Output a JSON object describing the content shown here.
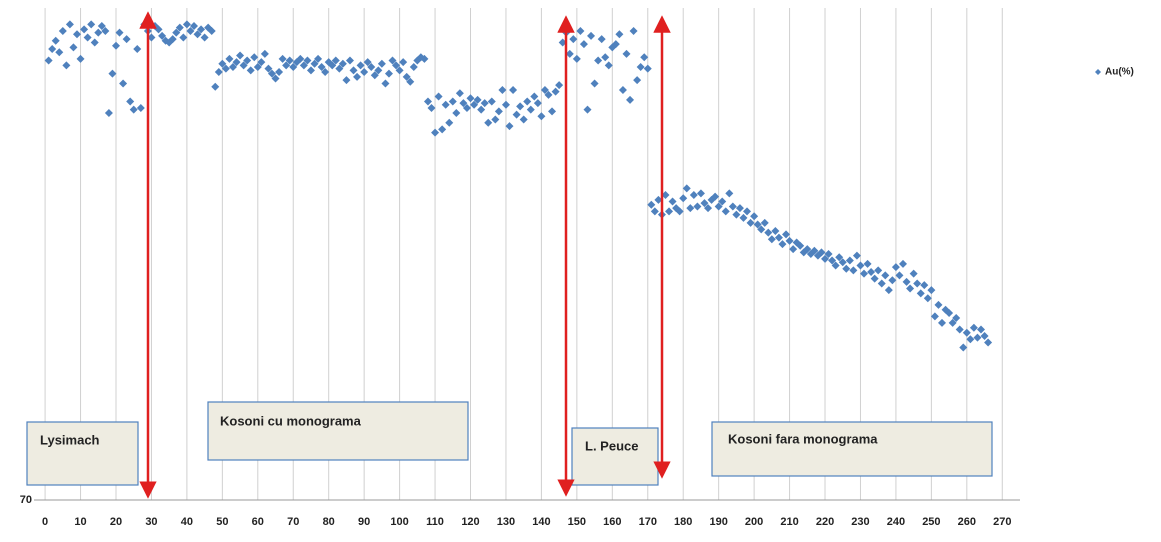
{
  "chart_data": {
    "type": "scatter",
    "xlim": [
      -2,
      275
    ],
    "xticks": [
      0,
      10,
      20,
      30,
      40,
      50,
      60,
      70,
      80,
      90,
      100,
      110,
      120,
      130,
      140,
      150,
      160,
      170,
      180,
      190,
      200,
      210,
      220,
      230,
      240,
      250,
      260,
      270
    ],
    "ylim": [
      70,
      100
    ],
    "yticks": [
      70
    ],
    "grid": true,
    "legend": "right",
    "annotations": [
      "Lysimach",
      "Kosoni  cu monograma",
      "L. Peuce",
      "Kosoni fara monograma"
    ],
    "series": [
      {
        "name": "Au(%)",
        "color": "#4f81bd",
        "x": [
          1,
          2,
          3,
          4,
          5,
          6,
          7,
          8,
          9,
          10,
          11,
          12,
          13,
          14,
          15,
          16,
          17,
          18,
          19,
          20,
          21,
          22,
          23,
          24,
          25,
          26,
          27,
          28,
          29,
          30,
          31,
          32,
          33,
          34,
          35,
          36,
          37,
          38,
          39,
          40,
          41,
          42,
          43,
          44,
          45,
          46,
          47,
          48,
          49,
          50,
          51,
          52,
          53,
          54,
          55,
          56,
          57,
          58,
          59,
          60,
          61,
          62,
          63,
          64,
          65,
          66,
          67,
          68,
          69,
          70,
          71,
          72,
          73,
          74,
          75,
          76,
          77,
          78,
          79,
          80,
          81,
          82,
          83,
          84,
          85,
          86,
          87,
          88,
          89,
          90,
          91,
          92,
          93,
          94,
          95,
          96,
          97,
          98,
          99,
          100,
          101,
          102,
          103,
          104,
          105,
          106,
          107,
          108,
          109,
          110,
          111,
          112,
          113,
          114,
          115,
          116,
          117,
          118,
          119,
          120,
          121,
          122,
          123,
          124,
          125,
          126,
          127,
          128,
          129,
          130,
          131,
          132,
          133,
          134,
          135,
          136,
          137,
          138,
          139,
          140,
          141,
          142,
          143,
          144,
          145,
          146,
          147,
          148,
          149,
          150,
          151,
          152,
          153,
          154,
          155,
          156,
          157,
          158,
          159,
          160,
          161,
          162,
          163,
          164,
          165,
          166,
          167,
          168,
          169,
          170,
          171,
          172,
          173,
          174,
          175,
          176,
          177,
          178,
          179,
          180,
          181,
          182,
          183,
          184,
          185,
          186,
          187,
          188,
          189,
          190,
          191,
          192,
          193,
          194,
          195,
          196,
          197,
          198,
          199,
          200,
          201,
          202,
          203,
          204,
          205,
          206,
          207,
          208,
          209,
          210,
          211,
          212,
          213,
          214,
          215,
          216,
          217,
          218,
          219,
          220,
          221,
          222,
          223,
          224,
          225,
          226,
          227,
          228,
          229,
          230,
          231,
          232,
          233,
          234,
          235,
          236,
          237,
          238,
          239,
          240,
          241,
          242,
          243,
          244,
          245,
          246,
          247,
          248,
          249,
          250,
          251,
          252,
          253,
          254,
          255,
          256,
          257,
          258,
          259,
          260,
          261,
          262,
          263,
          264,
          265,
          266
        ],
        "values": [
          96.8,
          97.5,
          98.0,
          97.3,
          98.6,
          96.5,
          99.0,
          97.6,
          98.4,
          96.9,
          98.7,
          98.2,
          99.0,
          97.9,
          98.5,
          98.9,
          98.6,
          93.6,
          96.0,
          97.7,
          98.5,
          95.4,
          98.1,
          94.3,
          93.8,
          97.5,
          93.9,
          99.0,
          98.6,
          98.2,
          98.9,
          98.7,
          98.3,
          98.0,
          97.9,
          98.1,
          98.5,
          98.8,
          98.2,
          99.0,
          98.6,
          98.9,
          98.4,
          98.7,
          98.2,
          98.8,
          98.6,
          95.2,
          96.1,
          96.6,
          96.3,
          96.9,
          96.4,
          96.7,
          97.1,
          96.5,
          96.8,
          96.2,
          97.0,
          96.4,
          96.7,
          97.2,
          96.3,
          96.0,
          95.7,
          96.1,
          96.9,
          96.5,
          96.8,
          96.4,
          96.7,
          96.9,
          96.5,
          96.8,
          96.2,
          96.6,
          96.9,
          96.4,
          96.1,
          96.7,
          96.5,
          96.8,
          96.3,
          96.6,
          95.6,
          96.8,
          96.2,
          95.8,
          96.5,
          96.1,
          96.7,
          96.4,
          95.9,
          96.2,
          96.6,
          95.4,
          96.0,
          96.8,
          96.5,
          96.2,
          96.7,
          95.8,
          95.5,
          96.4,
          96.8,
          97.0,
          96.9,
          94.3,
          93.9,
          92.4,
          94.6,
          92.6,
          94.1,
          93.0,
          94.3,
          93.6,
          94.8,
          94.2,
          93.9,
          94.5,
          94.1,
          94.4,
          93.8,
          94.2,
          93.0,
          94.3,
          93.2,
          93.7,
          95.0,
          94.1,
          92.8,
          95.0,
          93.5,
          94.0,
          93.2,
          94.3,
          93.8,
          94.6,
          94.2,
          93.4,
          95.0,
          94.7,
          93.7,
          94.9,
          95.3,
          97.9,
          98.5,
          97.2,
          98.1,
          96.9,
          98.6,
          97.8,
          93.8,
          98.3,
          95.4,
          96.8,
          98.1,
          97.0,
          96.5,
          97.6,
          97.8,
          98.4,
          95.0,
          97.2,
          94.4,
          98.6,
          95.6,
          96.4,
          97.0,
          96.3,
          88.0,
          87.6,
          88.3,
          87.4,
          88.6,
          87.6,
          88.2,
          87.8,
          87.6,
          88.4,
          89.0,
          87.8,
          88.6,
          87.9,
          88.7,
          88.1,
          87.8,
          88.3,
          88.5,
          87.9,
          88.2,
          87.6,
          88.7,
          87.9,
          87.4,
          87.8,
          87.2,
          87.6,
          86.9,
          87.3,
          86.8,
          86.5,
          86.9,
          86.3,
          85.9,
          86.4,
          86.0,
          85.6,
          86.2,
          85.8,
          85.3,
          85.7,
          85.5,
          85.1,
          85.3,
          85.0,
          85.2,
          84.9,
          85.1,
          84.7,
          85.0,
          84.6,
          84.3,
          84.8,
          84.5,
          84.1,
          84.6,
          84.0,
          84.9,
          84.3,
          83.8,
          84.4,
          83.9,
          83.5,
          84.0,
          83.2,
          83.7,
          82.8,
          83.4,
          84.2,
          83.7,
          84.4,
          83.3,
          82.9,
          83.8,
          83.2,
          82.6,
          83.1,
          82.3,
          82.8,
          81.2,
          81.9,
          80.8,
          81.6,
          81.4,
          80.8,
          81.1,
          80.4,
          79.3,
          80.2,
          79.8,
          80.5,
          79.9,
          80.4,
          80.0,
          79.6
        ]
      }
    ]
  }
}
